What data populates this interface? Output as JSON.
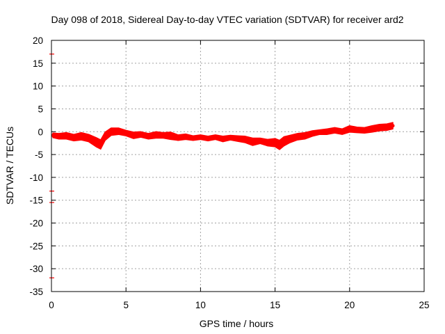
{
  "chart_data": {
    "type": "line",
    "title": "Day 098 of 2018, Sidereal Day-to-day VTEC variation (SDTVAR) for receiver ard2",
    "xlabel": "GPS time / hours",
    "ylabel": "SDTVAR / TECUs",
    "xlim": [
      0,
      25
    ],
    "ylim": [
      -35,
      20
    ],
    "xticks": [
      0,
      5,
      10,
      15,
      20,
      25
    ],
    "yticks": [
      -35,
      -30,
      -25,
      -20,
      -15,
      -10,
      -5,
      0,
      5,
      10,
      15,
      20
    ],
    "grid": true,
    "series_color": "#ff0000",
    "series": [
      {
        "name": "SDTVAR",
        "x": [
          0.1,
          0.5,
          1.0,
          1.5,
          2.0,
          2.5,
          3.0,
          3.3,
          3.6,
          4.0,
          4.5,
          5.0,
          5.5,
          6.0,
          6.5,
          7.0,
          7.5,
          8.0,
          8.5,
          9.0,
          9.5,
          10.0,
          10.5,
          11.0,
          11.5,
          12.0,
          12.5,
          13.0,
          13.5,
          14.0,
          14.5,
          15.0,
          15.3,
          15.6,
          16.0,
          16.5,
          17.0,
          17.5,
          18.0,
          18.5,
          19.0,
          19.5,
          20.0,
          20.5,
          21.0,
          21.5,
          22.0,
          22.5,
          22.9
        ],
        "y": [
          -0.8,
          -1.0,
          -0.9,
          -1.3,
          -1.0,
          -1.4,
          -2.3,
          -2.8,
          -1.0,
          0.0,
          0.1,
          -0.3,
          -0.8,
          -0.6,
          -1.0,
          -0.7,
          -0.8,
          -0.9,
          -1.3,
          -1.1,
          -1.4,
          -1.2,
          -1.5,
          -1.2,
          -1.6,
          -1.3,
          -1.5,
          -1.7,
          -2.2,
          -2.0,
          -2.4,
          -2.4,
          -2.9,
          -2.1,
          -1.6,
          -1.1,
          -0.9,
          -0.4,
          -0.1,
          0.0,
          0.3,
          0.0,
          0.6,
          0.4,
          0.3,
          0.6,
          0.9,
          1.0,
          1.3
        ],
        "band_halfwidth": [
          0.5,
          0.6,
          0.7,
          0.7,
          0.8,
          0.8,
          1.0,
          1.0,
          0.9,
          0.8,
          0.7,
          0.6,
          0.7,
          0.6,
          0.6,
          0.7,
          0.6,
          0.8,
          0.6,
          0.6,
          0.5,
          0.5,
          0.5,
          0.5,
          0.6,
          0.5,
          0.6,
          0.7,
          0.8,
          0.6,
          0.7,
          0.9,
          1.0,
          1.0,
          0.8,
          0.7,
          0.7,
          0.6,
          0.5,
          0.6,
          0.6,
          0.6,
          0.7,
          0.6,
          0.6,
          0.7,
          0.7,
          0.7,
          0.7
        ]
      }
    ],
    "left_edge_markers": [
      17,
      -13,
      -15.5,
      -32
    ]
  }
}
